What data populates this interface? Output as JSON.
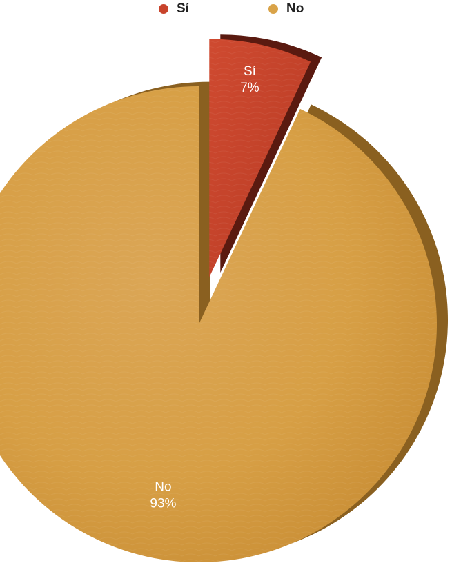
{
  "chart_data": {
    "type": "pie",
    "title": "",
    "categories": [
      "Sí",
      "No"
    ],
    "values": [
      7,
      93
    ],
    "labels": [
      "7%",
      "93%"
    ],
    "colors": [
      "#c8432b",
      "#d9a348"
    ],
    "exploded": "Sí",
    "legend_position": "top"
  }
}
